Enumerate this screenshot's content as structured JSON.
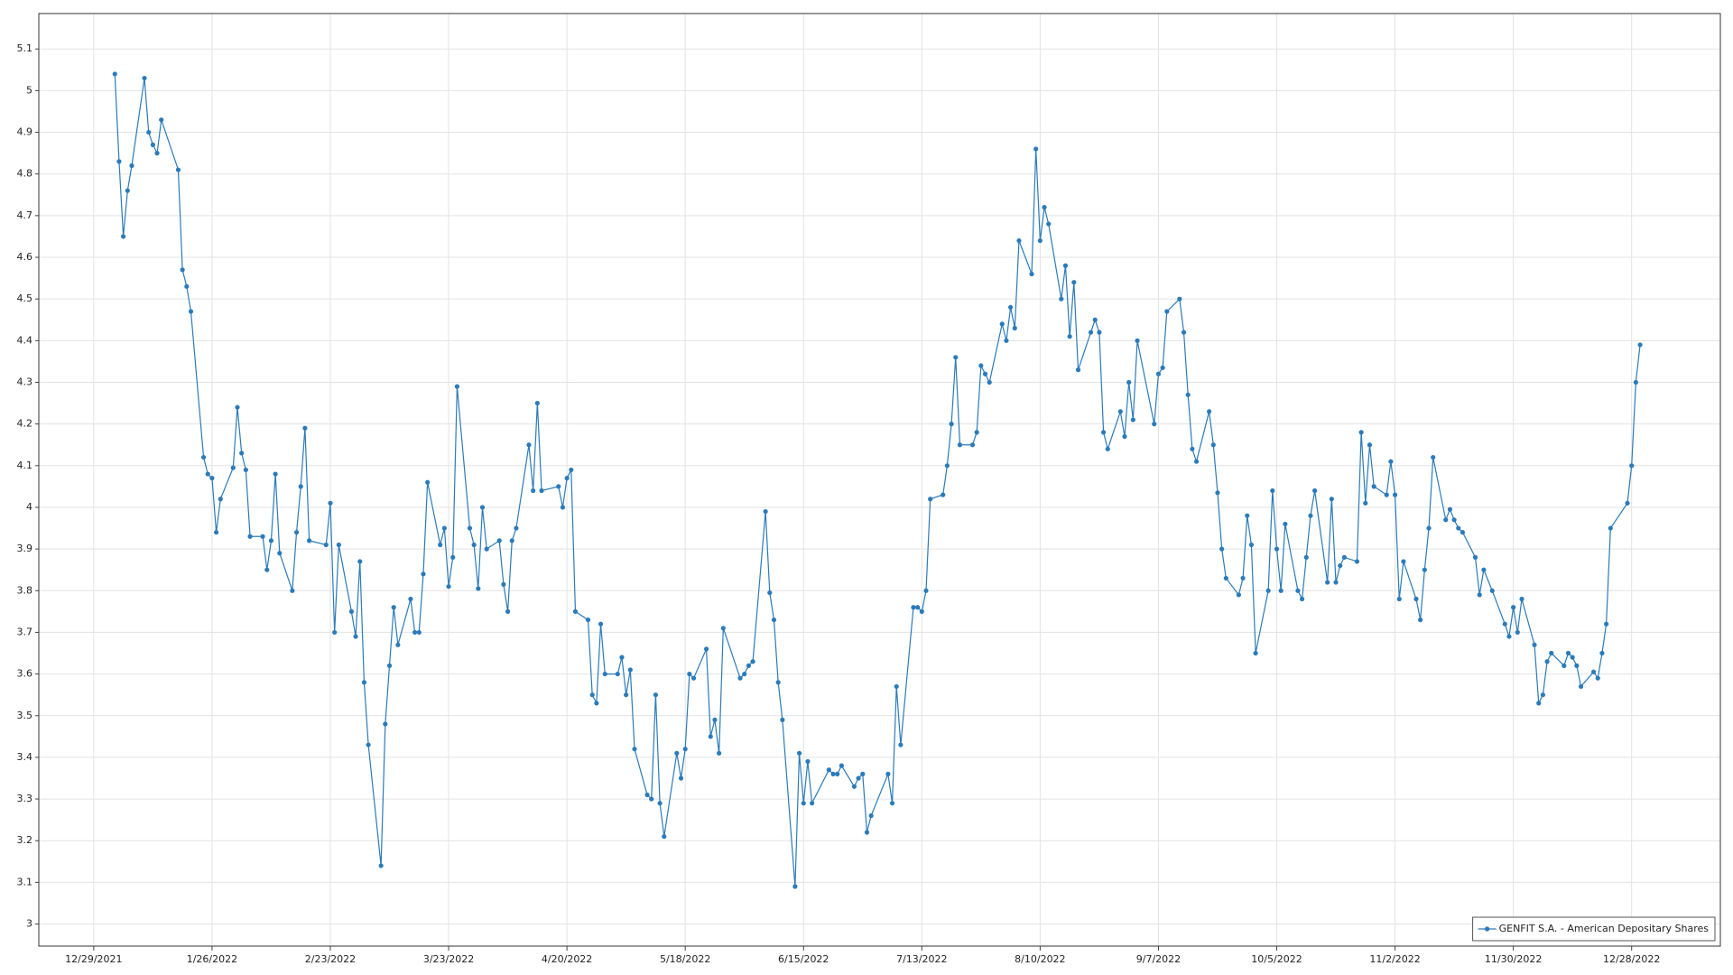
{
  "chart_data": {
    "type": "line",
    "xlim": [
      "12/16/2021",
      "1/18/2023"
    ],
    "xticks": [
      "12/29/2021",
      "1/26/2022",
      "2/23/2022",
      "3/23/2022",
      "4/20/2022",
      "5/18/2022",
      "6/15/2022",
      "7/13/2022",
      "8/10/2022",
      "9/7/2022",
      "10/5/2022",
      "11/2/2022",
      "11/30/2022",
      "12/28/2022"
    ],
    "ylim": [
      2.947,
      5.185
    ],
    "yticks": [
      3,
      3.1,
      3.2,
      3.3,
      3.4,
      3.5,
      3.6,
      3.7,
      3.8,
      3.9,
      4,
      4.1,
      4.2,
      4.3,
      4.4,
      4.5,
      4.6,
      4.7,
      4.8,
      4.9,
      5,
      5.1
    ],
    "grid": true,
    "legend": "bottom-right",
    "series": [
      {
        "name": "GENFIT S.A. - American Depositary Shares",
        "color": "#2b7bba",
        "x": [
          "1/3/2022",
          "1/4/2022",
          "1/5/2022",
          "1/6/2022",
          "1/7/2022",
          "1/10/2022",
          "1/11/2022",
          "1/12/2022",
          "1/13/2022",
          "1/14/2022",
          "1/18/2022",
          "1/19/2022",
          "1/20/2022",
          "1/21/2022",
          "1/24/2022",
          "1/25/2022",
          "1/26/2022",
          "1/27/2022",
          "1/28/2022",
          "1/31/2022",
          "2/1/2022",
          "2/2/2022",
          "2/3/2022",
          "2/4/2022",
          "2/7/2022",
          "2/8/2022",
          "2/9/2022",
          "2/10/2022",
          "2/11/2022",
          "2/14/2022",
          "2/15/2022",
          "2/16/2022",
          "2/17/2022",
          "2/18/2022",
          "2/22/2022",
          "2/23/2022",
          "2/24/2022",
          "2/25/2022",
          "2/28/2022",
          "3/1/2022",
          "3/2/2022",
          "3/3/2022",
          "3/4/2022",
          "3/7/2022",
          "3/8/2022",
          "3/9/2022",
          "3/10/2022",
          "3/11/2022",
          "3/14/2022",
          "3/15/2022",
          "3/16/2022",
          "3/17/2022",
          "3/18/2022",
          "3/21/2022",
          "3/22/2022",
          "3/23/2022",
          "3/24/2022",
          "3/25/2022",
          "3/28/2022",
          "3/29/2022",
          "3/30/2022",
          "3/31/2022",
          "4/1/2022",
          "4/4/2022",
          "4/5/2022",
          "4/6/2022",
          "4/7/2022",
          "4/8/2022",
          "4/11/2022",
          "4/12/2022",
          "4/13/2022",
          "4/14/2022",
          "4/18/2022",
          "4/19/2022",
          "4/20/2022",
          "4/21/2022",
          "4/22/2022",
          "4/25/2022",
          "4/26/2022",
          "4/27/2022",
          "4/28/2022",
          "4/29/2022",
          "5/2/2022",
          "5/3/2022",
          "5/4/2022",
          "5/5/2022",
          "5/6/2022",
          "5/9/2022",
          "5/10/2022",
          "5/11/2022",
          "5/12/2022",
          "5/13/2022",
          "5/16/2022",
          "5/17/2022",
          "5/18/2022",
          "5/19/2022",
          "5/20/2022",
          "5/23/2022",
          "5/24/2022",
          "5/25/2022",
          "5/26/2022",
          "5/27/2022",
          "5/31/2022",
          "6/1/2022",
          "6/2/2022",
          "6/3/2022",
          "6/6/2022",
          "6/7/2022",
          "6/8/2022",
          "6/9/2022",
          "6/10/2022",
          "6/13/2022",
          "6/14/2022",
          "6/15/2022",
          "6/16/2022",
          "6/17/2022",
          "6/21/2022",
          "6/22/2022",
          "6/23/2022",
          "6/24/2022",
          "6/27/2022",
          "6/28/2022",
          "6/29/2022",
          "6/30/2022",
          "7/1/2022",
          "7/5/2022",
          "7/6/2022",
          "7/7/2022",
          "7/8/2022",
          "7/11/2022",
          "7/12/2022",
          "7/13/2022",
          "7/14/2022",
          "7/15/2022",
          "7/18/2022",
          "7/19/2022",
          "7/20/2022",
          "7/21/2022",
          "7/22/2022",
          "7/25/2022",
          "7/26/2022",
          "7/27/2022",
          "7/28/2022",
          "7/29/2022",
          "8/1/2022",
          "8/2/2022",
          "8/3/2022",
          "8/4/2022",
          "8/5/2022",
          "8/8/2022",
          "8/9/2022",
          "8/10/2022",
          "8/11/2022",
          "8/12/2022",
          "8/15/2022",
          "8/16/2022",
          "8/17/2022",
          "8/18/2022",
          "8/19/2022",
          "8/22/2022",
          "8/23/2022",
          "8/24/2022",
          "8/25/2022",
          "8/26/2022",
          "8/29/2022",
          "8/30/2022",
          "8/31/2022",
          "9/1/2022",
          "9/2/2022",
          "9/6/2022",
          "9/7/2022",
          "9/8/2022",
          "9/9/2022",
          "9/12/2022",
          "9/13/2022",
          "9/14/2022",
          "9/15/2022",
          "9/16/2022",
          "9/19/2022",
          "9/20/2022",
          "9/21/2022",
          "9/22/2022",
          "9/23/2022",
          "9/26/2022",
          "9/27/2022",
          "9/28/2022",
          "9/29/2022",
          "9/30/2022",
          "10/3/2022",
          "10/4/2022",
          "10/5/2022",
          "10/6/2022",
          "10/7/2022",
          "10/10/2022",
          "10/11/2022",
          "10/12/2022",
          "10/13/2022",
          "10/14/2022",
          "10/17/2022",
          "10/18/2022",
          "10/19/2022",
          "10/20/2022",
          "10/21/2022",
          "10/24/2022",
          "10/25/2022",
          "10/26/2022",
          "10/27/2022",
          "10/28/2022",
          "10/31/2022",
          "11/1/2022",
          "11/2/2022",
          "11/3/2022",
          "11/4/2022",
          "11/7/2022",
          "11/8/2022",
          "11/9/2022",
          "11/10/2022",
          "11/11/2022",
          "11/14/2022",
          "11/15/2022",
          "11/16/2022",
          "11/17/2022",
          "11/18/2022",
          "11/21/2022",
          "11/22/2022",
          "11/23/2022",
          "11/25/2022",
          "11/28/2022",
          "11/29/2022",
          "11/30/2022",
          "12/1/2022",
          "12/2/2022",
          "12/5/2022",
          "12/6/2022",
          "12/7/2022",
          "12/8/2022",
          "12/9/2022",
          "12/12/2022",
          "12/13/2022",
          "12/14/2022",
          "12/15/2022",
          "12/16/2022",
          "12/19/2022",
          "12/20/2022",
          "12/21/2022",
          "12/22/2022",
          "12/23/2022",
          "12/27/2022",
          "12/28/2022",
          "12/29/2022",
          "12/30/2022"
        ],
        "values": [
          5.04,
          4.83,
          4.65,
          4.76,
          4.82,
          5.03,
          4.9,
          4.87,
          4.85,
          4.93,
          4.81,
          4.57,
          4.53,
          4.47,
          4.12,
          4.08,
          4.07,
          3.94,
          4.02,
          4.095,
          4.24,
          4.13,
          4.09,
          3.93,
          3.93,
          3.85,
          3.92,
          4.08,
          3.89,
          3.8,
          3.94,
          4.05,
          4.19,
          3.92,
          3.91,
          4.01,
          3.7,
          3.91,
          3.75,
          3.69,
          3.87,
          3.58,
          3.43,
          3.14,
          3.48,
          3.62,
          3.76,
          3.67,
          3.78,
          3.7,
          3.7,
          3.84,
          4.06,
          3.91,
          3.95,
          3.81,
          3.88,
          4.29,
          3.95,
          3.91,
          3.805,
          4.0,
          3.9,
          3.92,
          3.815,
          3.75,
          3.92,
          3.95,
          4.15,
          4.04,
          4.25,
          4.04,
          4.05,
          4.0,
          4.07,
          4.09,
          3.75,
          3.73,
          3.55,
          3.53,
          3.72,
          3.6,
          3.6,
          3.64,
          3.55,
          3.61,
          3.42,
          3.31,
          3.3,
          3.55,
          3.29,
          3.21,
          3.41,
          3.35,
          3.42,
          3.6,
          3.59,
          3.66,
          3.45,
          3.49,
          3.41,
          3.71,
          3.59,
          3.6,
          3.62,
          3.63,
          3.99,
          3.795,
          3.73,
          3.58,
          3.49,
          3.09,
          3.41,
          3.29,
          3.39,
          3.29,
          3.37,
          3.36,
          3.36,
          3.38,
          3.33,
          3.35,
          3.36,
          3.22,
          3.26,
          3.36,
          3.29,
          3.57,
          3.43,
          3.76,
          3.76,
          3.75,
          3.8,
          4.02,
          4.03,
          4.1,
          4.2,
          4.36,
          4.15,
          4.15,
          4.18,
          4.34,
          4.32,
          4.3,
          4.44,
          4.4,
          4.48,
          4.43,
          4.64,
          4.56,
          4.86,
          4.64,
          4.72,
          4.68,
          4.5,
          4.58,
          4.41,
          4.54,
          4.33,
          4.42,
          4.45,
          4.42,
          4.18,
          4.14,
          4.23,
          4.17,
          4.3,
          4.21,
          4.4,
          4.2,
          4.32,
          4.335,
          4.47,
          4.5,
          4.42,
          4.27,
          4.14,
          4.11,
          4.23,
          4.15,
          4.035,
          3.9,
          3.83,
          3.79,
          3.83,
          3.98,
          3.91,
          3.65,
          3.8,
          4.04,
          3.9,
          3.8,
          3.96,
          3.8,
          3.78,
          3.88,
          3.98,
          4.04,
          3.82,
          4.02,
          3.82,
          3.86,
          3.88,
          3.87,
          4.18,
          4.01,
          4.15,
          4.05,
          4.03,
          4.11,
          4.03,
          3.78,
          3.87,
          3.78,
          3.73,
          3.85,
          3.95,
          4.12,
          3.97,
          3.995,
          3.97,
          3.95,
          3.94,
          3.88,
          3.79,
          3.85,
          3.8,
          3.72,
          3.69,
          3.76,
          3.7,
          3.78,
          3.67,
          3.53,
          3.55,
          3.63,
          3.65,
          3.62,
          3.65,
          3.64,
          3.62,
          3.57,
          3.605,
          3.59,
          3.65,
          3.72,
          3.95,
          4.01,
          4.1,
          4.3,
          4.39
        ]
      }
    ]
  }
}
